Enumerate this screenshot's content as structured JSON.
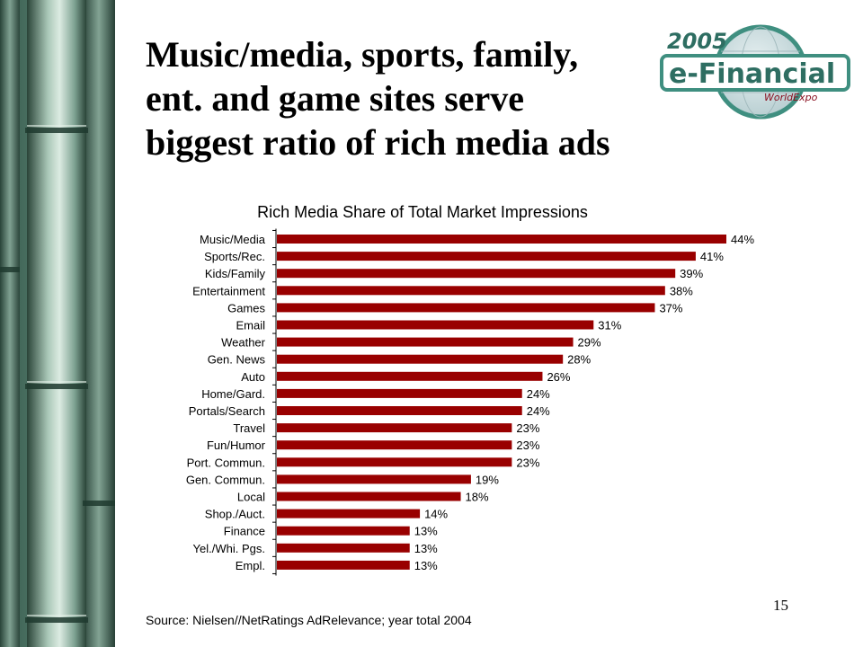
{
  "slide": {
    "title_lines": [
      "Music/media, sports, family,",
      "ent. and game sites serve",
      "biggest ratio of rich media ads"
    ],
    "source": "Source: Nielsen//NetRatings AdRelevance; year total 2004",
    "page_number": "15",
    "logo": {
      "year": "2005",
      "name": "e-Financial",
      "sub": "WorldExpo"
    },
    "colors": {
      "bar": "#990000",
      "logo_ring": "#3f8f80",
      "logo_text": "#2e6e62",
      "logo_sub": "#8a1020"
    }
  },
  "chart_data": {
    "type": "bar",
    "orientation": "horizontal",
    "title": "Rich Media Share of Total Market Impressions",
    "categories": [
      "Music/Media",
      "Sports/Rec.",
      "Kids/Family",
      "Entertainment",
      "Games",
      "Email",
      "Weather",
      "Gen. News",
      "Auto",
      "Home/Gard.",
      "Portals/Search",
      "Travel",
      "Fun/Humor",
      "Port. Commun.",
      "Gen. Commun.",
      "Local",
      "Shop./Auct.",
      "Finance",
      "Yel./Whi. Pgs.",
      "Empl."
    ],
    "values": [
      44,
      41,
      39,
      38,
      37,
      31,
      29,
      28,
      26,
      24,
      24,
      23,
      23,
      23,
      19,
      18,
      14,
      13,
      13,
      13
    ],
    "data_labels": [
      "44%",
      "41%",
      "39%",
      "38%",
      "37%",
      "31%",
      "29%",
      "28%",
      "26%",
      "24%",
      "24%",
      "23%",
      "23%",
      "23%",
      "19%",
      "18%",
      "14%",
      "13%",
      "13%",
      "13%"
    ],
    "xlim": [
      0,
      44
    ],
    "grid": false,
    "legend": "none"
  }
}
